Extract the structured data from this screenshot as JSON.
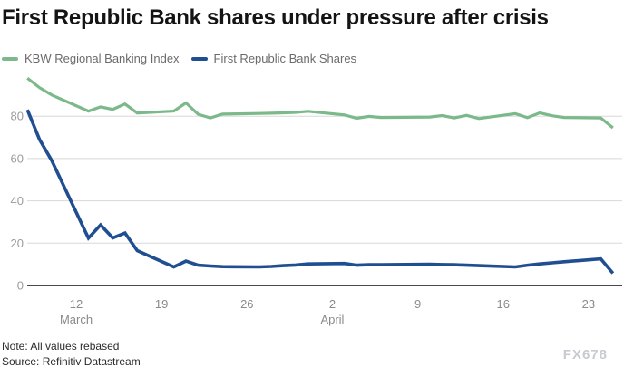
{
  "header": {
    "title": "First Republic Bank shares under pressure after crisis"
  },
  "legend": [
    {
      "label": "KBW Regional Banking Index",
      "color": "#7cb98a"
    },
    {
      "label": "First Republic Bank Shares",
      "color": "#1f4e91"
    }
  ],
  "footer": {
    "note": "Note: All values rebased",
    "source": "Source: Refinitiv Datastream",
    "watermark": "FX678"
  },
  "chart_data": {
    "type": "line",
    "title": "First Republic Bank shares under pressure after crisis",
    "x_unit": "calendar day offset from 2023-03-08 (trading days plotted)",
    "xlim": [
      0,
      48
    ],
    "ylim": [
      0,
      100
    ],
    "yticks": [
      0,
      20,
      40,
      60,
      80
    ],
    "xticks": [
      {
        "day": 4,
        "label": "12",
        "month": "March"
      },
      {
        "day": 11,
        "label": "19"
      },
      {
        "day": 18,
        "label": "26"
      },
      {
        "day": 25,
        "label": "2",
        "month": "April"
      },
      {
        "day": 32,
        "label": "9"
      },
      {
        "day": 39,
        "label": "16"
      },
      {
        "day": 46,
        "label": "23"
      }
    ],
    "grid": "horizontal",
    "legend_position": "top-left",
    "axis_colors": {
      "gridline": "#d8d8d8",
      "zero_line": "#4a4a4a",
      "tick_text": "#8f8f8f"
    },
    "series": [
      {
        "name": "KBW Regional Banking Index",
        "color": "#7cb98a",
        "width": 3.2,
        "points": [
          [
            0,
            98
          ],
          [
            1,
            93.5
          ],
          [
            2,
            90
          ],
          [
            5,
            82.4
          ],
          [
            6,
            84.4
          ],
          [
            7,
            83.2
          ],
          [
            8,
            85.8
          ],
          [
            9,
            81.5
          ],
          [
            12,
            82.4
          ],
          [
            13,
            86.3
          ],
          [
            14,
            80.9
          ],
          [
            15,
            79.2
          ],
          [
            16,
            81
          ],
          [
            19,
            81.3
          ],
          [
            20,
            81.4
          ],
          [
            21,
            81.6
          ],
          [
            22,
            81.8
          ],
          [
            23,
            82.3
          ],
          [
            26,
            80.6
          ],
          [
            27,
            79
          ],
          [
            28,
            79.9
          ],
          [
            29,
            79.4
          ],
          [
            33,
            79.6
          ],
          [
            34,
            80.3
          ],
          [
            35,
            79.2
          ],
          [
            36,
            80.4
          ],
          [
            37,
            78.9
          ],
          [
            40,
            81.2
          ],
          [
            41,
            79.3
          ],
          [
            42,
            81.6
          ],
          [
            43,
            80.2
          ],
          [
            44,
            79.4
          ],
          [
            47,
            79.2
          ],
          [
            48,
            74.5
          ]
        ]
      },
      {
        "name": "First Republic Bank Shares",
        "color": "#1f4e91",
        "width": 3.6,
        "points": [
          [
            0,
            83
          ],
          [
            1,
            69
          ],
          [
            2,
            59
          ],
          [
            5,
            22.4
          ],
          [
            6,
            28.6
          ],
          [
            7,
            22.5
          ],
          [
            8,
            24.8
          ],
          [
            9,
            16.5
          ],
          [
            12,
            8.8
          ],
          [
            13,
            11.5
          ],
          [
            14,
            9.6
          ],
          [
            15,
            9.2
          ],
          [
            16,
            8.9
          ],
          [
            19,
            8.8
          ],
          [
            20,
            9
          ],
          [
            21,
            9.4
          ],
          [
            22,
            9.7
          ],
          [
            23,
            10.2
          ],
          [
            26,
            10.4
          ],
          [
            27,
            9.6
          ],
          [
            28,
            9.8
          ],
          [
            29,
            9.8
          ],
          [
            33,
            10
          ],
          [
            34,
            9.9
          ],
          [
            35,
            9.8
          ],
          [
            36,
            9.6
          ],
          [
            37,
            9.4
          ],
          [
            40,
            8.8
          ],
          [
            41,
            9.6
          ],
          [
            42,
            10.2
          ],
          [
            43,
            10.7
          ],
          [
            44,
            11.2
          ],
          [
            47,
            12.6
          ],
          [
            48,
            5.8
          ]
        ]
      }
    ]
  }
}
